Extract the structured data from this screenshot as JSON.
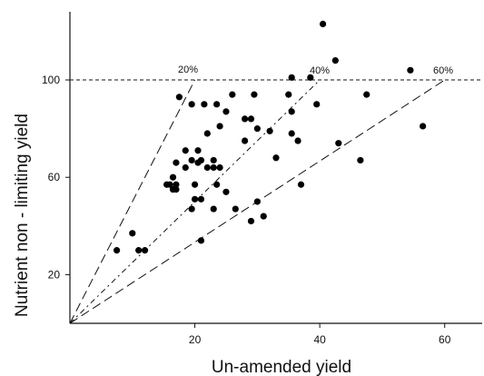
{
  "chart_data": {
    "type": "scatter",
    "title": "",
    "xlabel": "Un-amended yield",
    "ylabel": "Nutrient non - limiting yield",
    "xlim": [
      0,
      66
    ],
    "ylim": [
      0,
      128
    ],
    "x_ticks": [
      20,
      40,
      60
    ],
    "y_ticks": [
      20,
      60,
      100
    ],
    "grid": false,
    "legend": "none",
    "reference_lines": [
      {
        "label": "20%",
        "slope": 5.0,
        "dash": "long"
      },
      {
        "label": "40%",
        "slope": 2.5,
        "dash": "mixed"
      },
      {
        "label": "60%",
        "slope": 1.6667,
        "dash": "long"
      }
    ],
    "horizontal_line": {
      "y": 100,
      "style": "dashed"
    },
    "series": [
      {
        "points": [
          [
            7.5,
            30
          ],
          [
            10,
            37
          ],
          [
            11,
            30
          ],
          [
            12,
            30
          ],
          [
            15.5,
            57
          ],
          [
            16,
            57
          ],
          [
            16.5,
            60
          ],
          [
            16.5,
            55
          ],
          [
            17,
            55
          ],
          [
            17,
            57
          ],
          [
            17,
            66
          ],
          [
            17.5,
            93
          ],
          [
            18.5,
            71
          ],
          [
            18.5,
            64
          ],
          [
            19.5,
            90
          ],
          [
            19.5,
            67
          ],
          [
            19.5,
            47
          ],
          [
            20,
            57
          ],
          [
            20,
            51
          ],
          [
            20.5,
            66
          ],
          [
            20.5,
            71
          ],
          [
            21,
            34
          ],
          [
            21,
            67
          ],
          [
            21,
            51
          ],
          [
            21.5,
            90
          ],
          [
            22,
            78
          ],
          [
            22,
            64
          ],
          [
            23,
            47
          ],
          [
            23,
            67
          ],
          [
            23,
            64
          ],
          [
            23.5,
            90
          ],
          [
            23.5,
            57
          ],
          [
            24,
            81
          ],
          [
            24,
            64
          ],
          [
            25,
            87
          ],
          [
            25,
            54
          ],
          [
            26,
            94
          ],
          [
            26.5,
            47
          ],
          [
            28,
            75
          ],
          [
            28,
            84
          ],
          [
            29,
            84
          ],
          [
            29,
            42
          ],
          [
            29.5,
            94
          ],
          [
            30,
            80
          ],
          [
            30,
            50
          ],
          [
            31,
            44
          ],
          [
            32,
            79
          ],
          [
            33,
            68
          ],
          [
            35,
            94
          ],
          [
            35.5,
            101
          ],
          [
            35.5,
            87
          ],
          [
            35.5,
            78
          ],
          [
            36.5,
            75
          ],
          [
            37,
            57
          ],
          [
            38.5,
            101
          ],
          [
            39.5,
            90
          ],
          [
            40.5,
            123
          ],
          [
            42.5,
            108
          ],
          [
            43,
            74
          ],
          [
            46.5,
            67
          ],
          [
            47.5,
            94
          ],
          [
            54.5,
            104
          ],
          [
            56.5,
            81
          ]
        ]
      }
    ]
  }
}
